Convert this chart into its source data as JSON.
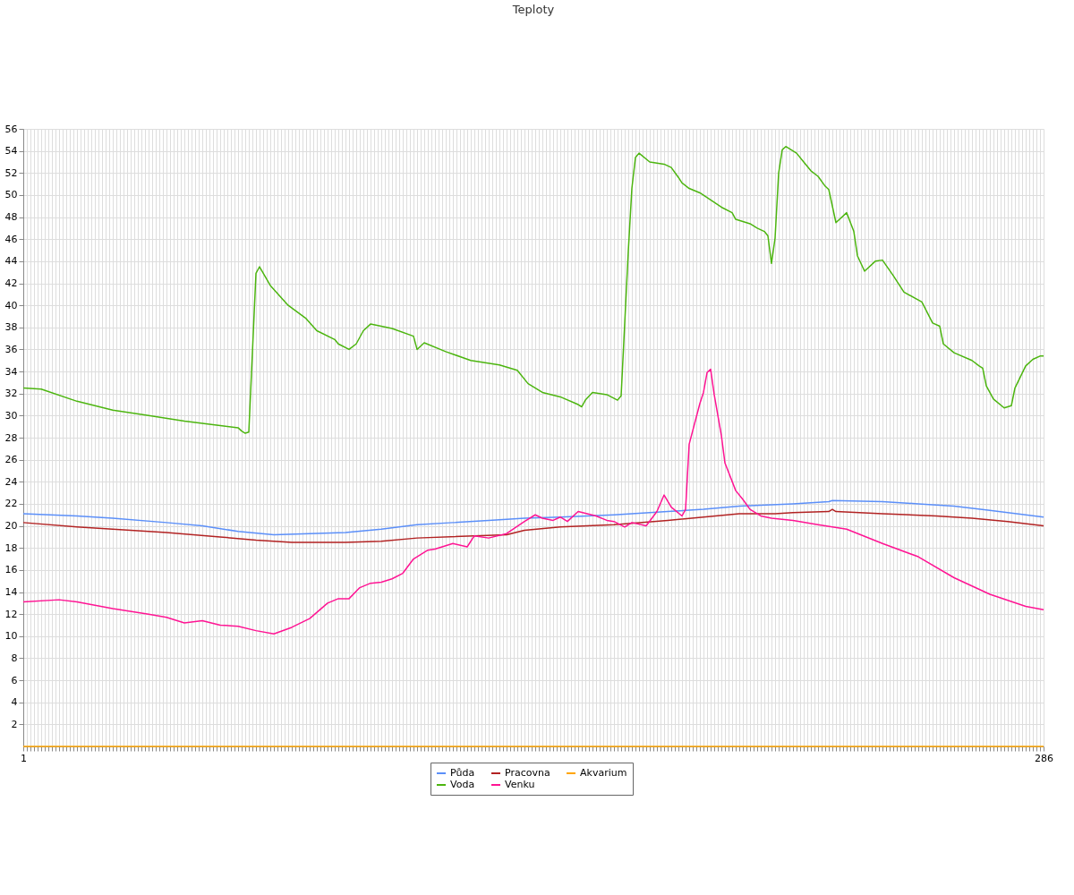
{
  "chart_data": {
    "type": "line",
    "title": "Teploty",
    "xlim": [
      1,
      286
    ],
    "ylim": [
      0,
      56
    ],
    "yticks": [
      2,
      4,
      6,
      8,
      10,
      12,
      14,
      16,
      18,
      20,
      22,
      24,
      26,
      28,
      30,
      32,
      34,
      36,
      38,
      40,
      42,
      44,
      46,
      48,
      50,
      52,
      54,
      56
    ],
    "xticks": [
      {
        "value": 1,
        "label": "1"
      },
      {
        "value": 286,
        "label": "286"
      }
    ],
    "grid": true,
    "legend": "bottom",
    "marker": "none",
    "line_style": "solid",
    "series": [
      {
        "name": "Půda",
        "color": "#5b8ff9",
        "x": [
          1,
          16,
          26,
          41,
          51,
          61,
          71,
          81,
          91,
          101,
          111,
          121,
          131,
          141,
          151,
          166,
          181,
          191,
          201,
          216,
          226,
          227,
          241,
          251,
          261,
          271,
          281,
          286
        ],
        "values": [
          21.1,
          20.9,
          20.7,
          20.3,
          20.0,
          19.5,
          19.2,
          19.3,
          19.4,
          19.7,
          20.1,
          20.3,
          20.5,
          20.7,
          20.8,
          21.0,
          21.3,
          21.5,
          21.8,
          22.0,
          22.2,
          22.3,
          22.2,
          22.0,
          21.8,
          21.4,
          21.0,
          20.8
        ]
      },
      {
        "name": "Voda",
        "color": "#4cb50f",
        "x": [
          1,
          6,
          16,
          26,
          36,
          46,
          56,
          61,
          62,
          63,
          64,
          66,
          67,
          70,
          75,
          80,
          83,
          88,
          89,
          92,
          94,
          96,
          98,
          104,
          110,
          111,
          113,
          119,
          126,
          134,
          139,
          142,
          146,
          151,
          156,
          157,
          158,
          160,
          164,
          167,
          168,
          170,
          171,
          172,
          173,
          176,
          180,
          182,
          184,
          185,
          187,
          190,
          196,
          199,
          200,
          204,
          206,
          208,
          209,
          210,
          211,
          212,
          213,
          214,
          217,
          219,
          221,
          223,
          225,
          226,
          228,
          231,
          233,
          234,
          236,
          239,
          241,
          244,
          247,
          252,
          255,
          257,
          258,
          261,
          266,
          268,
          269,
          270,
          272,
          275,
          277,
          278,
          281,
          283,
          285,
          286
        ],
        "values": [
          32.5,
          32.4,
          31.3,
          30.5,
          30.0,
          29.5,
          29.1,
          28.9,
          28.6,
          28.4,
          28.5,
          42.9,
          43.5,
          41.8,
          40.0,
          38.8,
          37.7,
          36.9,
          36.5,
          36.0,
          36.5,
          37.7,
          38.3,
          37.9,
          37.2,
          36.0,
          36.6,
          35.8,
          35.0,
          34.6,
          34.1,
          32.9,
          32.1,
          31.7,
          31.0,
          30.8,
          31.4,
          32.1,
          31.9,
          31.4,
          31.8,
          44.9,
          50.6,
          53.4,
          53.8,
          53.0,
          52.8,
          52.5,
          51.6,
          51.1,
          50.6,
          50.2,
          48.9,
          48.4,
          47.8,
          47.4,
          47.0,
          46.7,
          46.3,
          43.8,
          46.1,
          52.0,
          54.1,
          54.4,
          53.8,
          53.0,
          52.2,
          51.7,
          50.8,
          50.5,
          47.5,
          48.4,
          46.7,
          44.5,
          43.1,
          44.0,
          44.1,
          42.7,
          41.2,
          40.3,
          38.4,
          38.1,
          36.5,
          35.7,
          35.0,
          34.5,
          34.3,
          32.7,
          31.5,
          30.7,
          30.9,
          32.5,
          34.5,
          35.1,
          35.4,
          35.4
        ]
      },
      {
        "name": "Pracovna",
        "color": "#b22222",
        "x": [
          1,
          16,
          31,
          41,
          56,
          66,
          76,
          91,
          101,
          111,
          136,
          141,
          151,
          166,
          181,
          191,
          201,
          211,
          216,
          226,
          227,
          228,
          241,
          256,
          266,
          276,
          286
        ],
        "values": [
          20.3,
          19.9,
          19.6,
          19.4,
          19.0,
          18.7,
          18.5,
          18.5,
          18.6,
          18.9,
          19.2,
          19.6,
          19.9,
          20.1,
          20.5,
          20.8,
          21.1,
          21.1,
          21.2,
          21.3,
          21.5,
          21.3,
          21.1,
          20.9,
          20.7,
          20.4,
          20.0
        ]
      },
      {
        "name": "Venku",
        "color": "#ff1493",
        "x": [
          1,
          11,
          16,
          26,
          36,
          41,
          46,
          51,
          56,
          61,
          66,
          71,
          76,
          81,
          86,
          89,
          92,
          95,
          98,
          101,
          104,
          107,
          110,
          114,
          116,
          121,
          125,
          127,
          131,
          136,
          141,
          144,
          146,
          149,
          151,
          153,
          156,
          161,
          164,
          166,
          169,
          171,
          175,
          178,
          180,
          182,
          185,
          186,
          187,
          190,
          191,
          192,
          193,
          194,
          196,
          197,
          200,
          202,
          204,
          207,
          210,
          216,
          223,
          231,
          241,
          251,
          261,
          271,
          281,
          286
        ],
        "values": [
          13.1,
          13.3,
          13.1,
          12.5,
          12.0,
          11.7,
          11.2,
          11.4,
          11.0,
          10.9,
          10.5,
          10.2,
          10.8,
          11.6,
          13.0,
          13.4,
          13.4,
          14.4,
          14.8,
          14.9,
          15.2,
          15.7,
          17.0,
          17.8,
          17.9,
          18.4,
          18.1,
          19.1,
          18.9,
          19.3,
          20.4,
          21.0,
          20.7,
          20.5,
          20.8,
          20.4,
          21.3,
          20.9,
          20.5,
          20.4,
          19.9,
          20.3,
          20.0,
          21.3,
          22.8,
          21.7,
          20.9,
          21.5,
          27.4,
          31.1,
          32.1,
          33.9,
          34.2,
          31.9,
          28.2,
          25.7,
          23.2,
          22.4,
          21.5,
          20.9,
          20.7,
          20.5,
          20.1,
          19.7,
          18.4,
          17.2,
          15.3,
          13.8,
          12.7,
          12.4
        ]
      },
      {
        "name": "Akvarium",
        "color": "#ffa500",
        "x": [
          1,
          286
        ],
        "values": [
          0,
          0
        ]
      }
    ]
  }
}
